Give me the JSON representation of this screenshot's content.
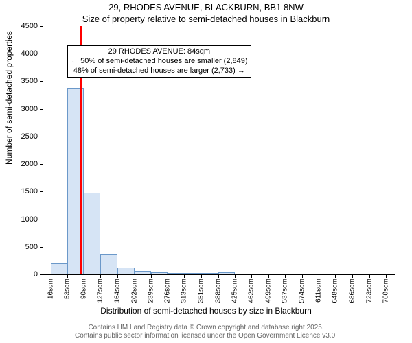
{
  "title_main": "29, RHODES AVENUE, BLACKBURN, BB1 8NW",
  "title_sub": "Size of property relative to semi-detached houses in Blackburn",
  "ylabel": "Number of semi-detached properties",
  "xlabel": "Distribution of semi-detached houses by size in Blackburn",
  "footer_line1": "Contains HM Land Registry data © Crown copyright and database right 2025.",
  "footer_line2": "Contains public sector information licensed under the Open Government Licence v3.0.",
  "chart": {
    "type": "histogram",
    "background_color": "#ffffff",
    "plot_border_color": "#000000",
    "bar_fill": "#d6e4f5",
    "bar_stroke": "#6b98c9",
    "marker_color": "#ff0000",
    "marker_x": 84,
    "ylim": [
      0,
      4500
    ],
    "ytick_step": 500,
    "yticks": [
      0,
      500,
      1000,
      1500,
      2000,
      2500,
      3000,
      3500,
      4000,
      4500
    ],
    "xlim": [
      0,
      780
    ],
    "xticks": [
      16,
      53,
      90,
      127,
      164,
      202,
      239,
      276,
      313,
      351,
      388,
      425,
      462,
      499,
      537,
      574,
      611,
      648,
      686,
      723,
      760
    ],
    "xtick_suffix": "sqm",
    "bin_width": 37,
    "bars": [
      {
        "x0": 16,
        "x1": 53,
        "value": 200
      },
      {
        "x0": 53,
        "x1": 90,
        "value": 3370
      },
      {
        "x0": 90,
        "x1": 127,
        "value": 1480
      },
      {
        "x0": 127,
        "x1": 164,
        "value": 370
      },
      {
        "x0": 164,
        "x1": 202,
        "value": 120
      },
      {
        "x0": 202,
        "x1": 239,
        "value": 60
      },
      {
        "x0": 239,
        "x1": 276,
        "value": 35
      },
      {
        "x0": 276,
        "x1": 313,
        "value": 25
      },
      {
        "x0": 313,
        "x1": 351,
        "value": 15
      },
      {
        "x0": 351,
        "x1": 388,
        "value": 10
      },
      {
        "x0": 388,
        "x1": 425,
        "value": 40
      },
      {
        "x0": 425,
        "x1": 462,
        "value": 0
      },
      {
        "x0": 462,
        "x1": 499,
        "value": 0
      },
      {
        "x0": 499,
        "x1": 537,
        "value": 0
      },
      {
        "x0": 537,
        "x1": 574,
        "value": 0
      },
      {
        "x0": 574,
        "x1": 611,
        "value": 0
      },
      {
        "x0": 611,
        "x1": 648,
        "value": 0
      },
      {
        "x0": 648,
        "x1": 686,
        "value": 0
      },
      {
        "x0": 686,
        "x1": 723,
        "value": 0
      },
      {
        "x0": 723,
        "x1": 760,
        "value": 0
      }
    ],
    "annotation": {
      "line1": "29 RHODES AVENUE: 84sqm",
      "line2": "← 50% of semi-detached houses are smaller (2,849)",
      "line3": "48% of semi-detached houses are larger (2,733) →",
      "box_border": "#000000",
      "box_bg": "#ffffff",
      "fontsize": 11,
      "x_anchor": 84,
      "y_anchor": 4150
    },
    "label_fontsize": 12,
    "tick_fontsize": 10,
    "title_fontsize": 13
  }
}
